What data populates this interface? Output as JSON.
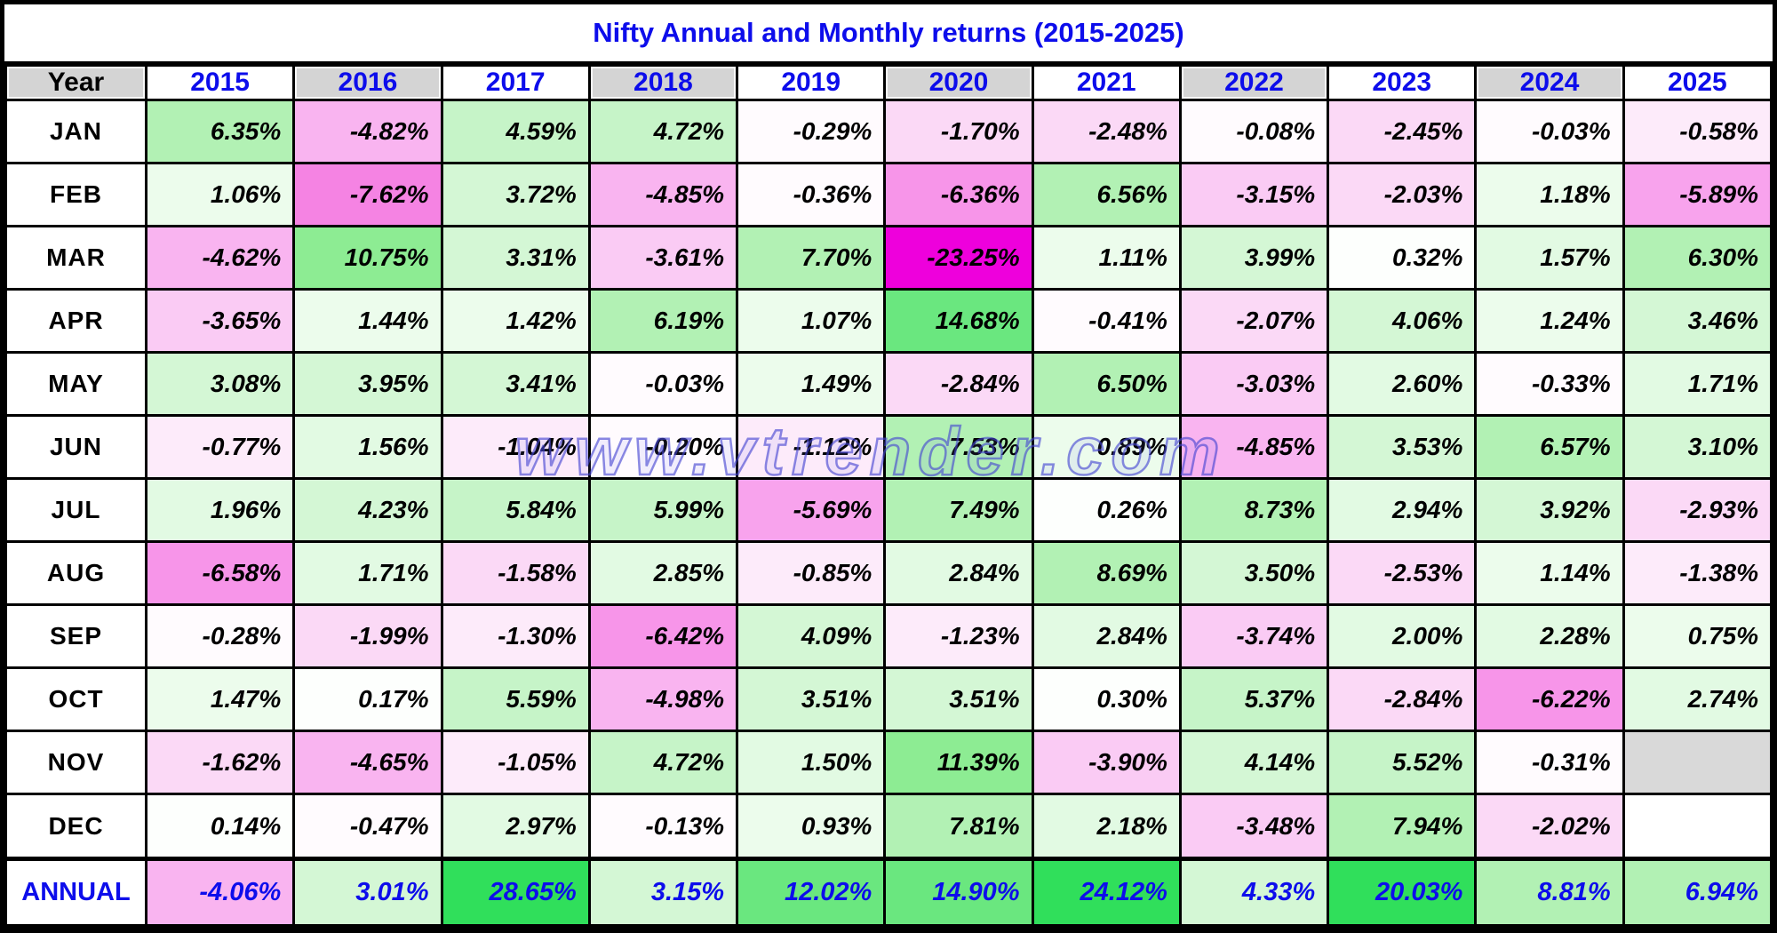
{
  "title": "Nifty Annual and Monthly returns (2015-2025)",
  "watermark": "www.vtrender.com",
  "colors": {
    "title_text": "#0d0deb",
    "year_text": "#0d0deb",
    "annual_text": "#0d0deb",
    "value_text": "#000000",
    "header_gray": "#d4d4d4",
    "grid_line": "#000000",
    "watermark_blue": "#4444d2",
    "max_positive_green": "#30df5b",
    "max_negative_magenta": "#ee00dc"
  },
  "heatmap_palette": {
    "positive": [
      {
        "min": 20,
        "color": "#30df5b"
      },
      {
        "min": 12,
        "color": "#6ae77f"
      },
      {
        "min": 9,
        "color": "#8dec93"
      },
      {
        "min": 6,
        "color": "#b2f1b4"
      },
      {
        "min": 4.5,
        "color": "#c6f4c8"
      },
      {
        "min": 3,
        "color": "#d4f7d5"
      },
      {
        "min": 1.5,
        "color": "#e2fae3"
      },
      {
        "min": 0.5,
        "color": "#ecfcec"
      },
      {
        "min": 0,
        "color": "#fdfffd"
      }
    ],
    "negative": [
      {
        "max": -20,
        "color": "#ee00dc"
      },
      {
        "max": -7,
        "color": "#f583e3"
      },
      {
        "max": -6,
        "color": "#f795e9"
      },
      {
        "max": -5,
        "color": "#f8a3ed"
      },
      {
        "max": -4,
        "color": "#f9b4f0"
      },
      {
        "max": -3,
        "color": "#facbf4"
      },
      {
        "max": -1.5,
        "color": "#fbd9f6"
      },
      {
        "max": -0.5,
        "color": "#fdebfa"
      },
      {
        "max": 0,
        "color": "#fffbfe"
      }
    ]
  },
  "chart_data": {
    "type": "heatmap",
    "title": "Nifty Annual and Monthly returns (2015-2025)",
    "corner_label": "Year",
    "unit": "%",
    "columns": [
      "2015",
      "2016",
      "2017",
      "2018",
      "2019",
      "2020",
      "2021",
      "2022",
      "2023",
      "2024",
      "2025"
    ],
    "rows": [
      {
        "label": "JAN",
        "values": [
          6.35,
          -4.82,
          4.59,
          4.72,
          -0.29,
          -1.7,
          -2.48,
          -0.08,
          -2.45,
          -0.03,
          -0.58
        ]
      },
      {
        "label": "FEB",
        "values": [
          1.06,
          -7.62,
          3.72,
          -4.85,
          -0.36,
          -6.36,
          6.56,
          -3.15,
          -2.03,
          1.18,
          -5.89
        ]
      },
      {
        "label": "MAR",
        "values": [
          -4.62,
          10.75,
          3.31,
          -3.61,
          7.7,
          -23.25,
          1.11,
          3.99,
          0.32,
          1.57,
          6.3
        ]
      },
      {
        "label": "APR",
        "values": [
          -3.65,
          1.44,
          1.42,
          6.19,
          1.07,
          14.68,
          -0.41,
          -2.07,
          4.06,
          1.24,
          3.46
        ]
      },
      {
        "label": "MAY",
        "values": [
          3.08,
          3.95,
          3.41,
          -0.03,
          1.49,
          -2.84,
          6.5,
          -3.03,
          2.6,
          -0.33,
          1.71
        ]
      },
      {
        "label": "JUN",
        "values": [
          -0.77,
          1.56,
          -1.04,
          -0.2,
          -1.12,
          7.53,
          0.89,
          -4.85,
          3.53,
          6.57,
          3.1
        ]
      },
      {
        "label": "JUL",
        "values": [
          1.96,
          4.23,
          5.84,
          5.99,
          -5.69,
          7.49,
          0.26,
          8.73,
          2.94,
          3.92,
          -2.93
        ]
      },
      {
        "label": "AUG",
        "values": [
          -6.58,
          1.71,
          -1.58,
          2.85,
          -0.85,
          2.84,
          8.69,
          3.5,
          -2.53,
          1.14,
          -1.38
        ]
      },
      {
        "label": "SEP",
        "values": [
          -0.28,
          -1.99,
          -1.3,
          -6.42,
          4.09,
          -1.23,
          2.84,
          -3.74,
          2.0,
          2.28,
          0.75
        ]
      },
      {
        "label": "OCT",
        "values": [
          1.47,
          0.17,
          5.59,
          -4.98,
          3.51,
          3.51,
          0.3,
          5.37,
          -2.84,
          -6.22,
          2.74
        ]
      },
      {
        "label": "NOV",
        "values": [
          -1.62,
          -4.65,
          -1.05,
          4.72,
          1.5,
          11.39,
          -3.9,
          4.14,
          5.52,
          -0.31,
          null
        ],
        "empty_bg": "#d9d9d9"
      },
      {
        "label": "DEC",
        "values": [
          0.14,
          -0.47,
          2.97,
          -0.13,
          0.93,
          7.81,
          2.18,
          -3.48,
          7.94,
          -2.02,
          null
        ],
        "empty_bg": "#ffffff"
      }
    ],
    "annual_row": {
      "label": "ANNUAL",
      "values": [
        -4.06,
        3.01,
        28.65,
        3.15,
        12.02,
        14.9,
        24.12,
        4.33,
        20.03,
        8.81,
        6.94
      ]
    }
  }
}
